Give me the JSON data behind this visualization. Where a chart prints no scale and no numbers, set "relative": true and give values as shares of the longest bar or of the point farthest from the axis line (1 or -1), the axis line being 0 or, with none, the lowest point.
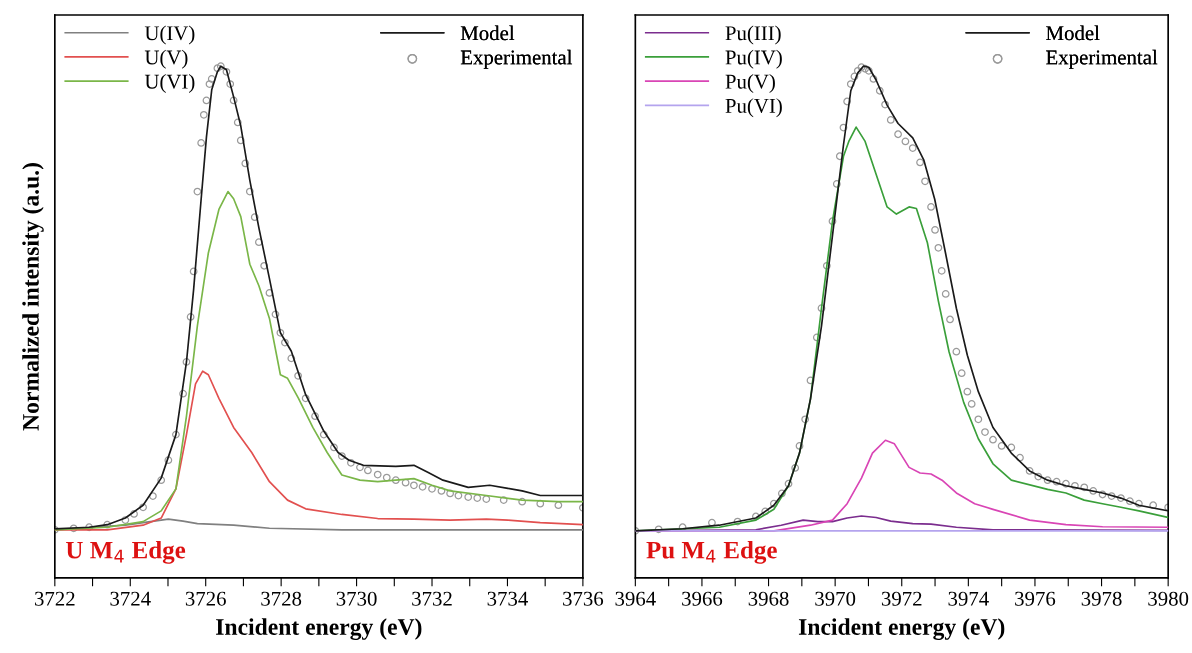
{
  "chart_data": [
    {
      "type": "line",
      "relative": true,
      "xlabel": "Incident energy (eV)",
      "ylabel": "Normalized intensity (a.u.)",
      "annotations": [
        "U M$_{4}$ Edge"
      ],
      "tick_labels": "x",
      "grid": false,
      "legend": "top left",
      "marker": "none",
      "line_style": "solid",
      "xlim": [
        3722,
        3736
      ],
      "xticks": [
        3722,
        {
          "value": 3723,
          "label": null
        },
        3724,
        {
          "value": 3725,
          "label": null
        },
        3726,
        {
          "value": 3727,
          "label": null
        },
        3728,
        {
          "value": 3729,
          "label": null
        },
        3730,
        {
          "value": 3731,
          "label": null
        },
        3732,
        {
          "value": 3733,
          "label": null
        },
        3734,
        {
          "value": 3735,
          "label": null
        },
        3736
      ],
      "series": [
        {
          "name": "U(IV)",
          "color": "#808080",
          "x": [
            3722.0,
            3723.87,
            3724.63,
            3725.01,
            3725.4,
            3725.78,
            3726.74,
            3727.69,
            3729.61,
            3736.0
          ],
          "values": [
            0.094,
            0.103,
            0.111,
            0.115,
            0.111,
            0.106,
            0.103,
            0.097,
            0.094,
            0.094
          ]
        },
        {
          "name": "U(V)",
          "color": "#e2504f",
          "x": [
            3722.0,
            3723.39,
            3724.34,
            3724.82,
            3725.21,
            3725.49,
            3725.73,
            3725.92,
            3726.07,
            3726.35,
            3726.74,
            3727.22,
            3727.69,
            3728.17,
            3728.65,
            3729.61,
            3730.56,
            3731.52,
            3732.48,
            3733.44,
            3734.01,
            3734.87,
            3736.0
          ],
          "values": [
            0.094,
            0.094,
            0.103,
            0.117,
            0.174,
            0.28,
            0.379,
            0.404,
            0.397,
            0.351,
            0.294,
            0.245,
            0.188,
            0.152,
            0.135,
            0.124,
            0.116,
            0.115,
            0.113,
            0.115,
            0.113,
            0.108,
            0.104
          ]
        },
        {
          "name": "U(VI)",
          "color": "#7ab648",
          "x": [
            3722.0,
            3723.39,
            3724.34,
            3724.82,
            3725.21,
            3725.49,
            3725.78,
            3726.07,
            3726.35,
            3726.59,
            3726.74,
            3726.93,
            3727.17,
            3727.41,
            3727.69,
            3727.98,
            3728.17,
            3728.46,
            3728.84,
            3729.22,
            3729.61,
            3730.09,
            3730.56,
            3731.04,
            3731.52,
            3732.0,
            3732.48,
            3733.44,
            3734.39,
            3735.35,
            3736.0
          ],
          "values": [
            0.094,
            0.099,
            0.11,
            0.131,
            0.174,
            0.316,
            0.493,
            0.635,
            0.72,
            0.755,
            0.741,
            0.706,
            0.613,
            0.571,
            0.507,
            0.397,
            0.39,
            0.351,
            0.294,
            0.245,
            0.201,
            0.191,
            0.188,
            0.191,
            0.194,
            0.181,
            0.17,
            0.161,
            0.152,
            0.149,
            0.149
          ]
        },
        {
          "name": "Model",
          "color": "#1a1a1a",
          "x": [
            3722.0,
            3722.91,
            3723.39,
            3723.87,
            3724.34,
            3724.82,
            3725.21,
            3725.49,
            3725.68,
            3725.88,
            3726.02,
            3726.16,
            3726.31,
            3726.4,
            3726.55,
            3726.74,
            3726.93,
            3727.17,
            3727.41,
            3727.69,
            3727.98,
            3728.27,
            3728.65,
            3729.13,
            3729.51,
            3729.8,
            3730.18,
            3731.04,
            3731.52,
            3731.9,
            3732.29,
            3732.96,
            3733.53,
            3734.01,
            3734.39,
            3734.87,
            3735.35,
            3736.0
          ],
          "values": [
            0.096,
            0.099,
            0.104,
            0.117,
            0.142,
            0.195,
            0.28,
            0.422,
            0.564,
            0.741,
            0.862,
            0.954,
            0.989,
            1.0,
            0.993,
            0.94,
            0.883,
            0.777,
            0.684,
            0.585,
            0.479,
            0.443,
            0.358,
            0.287,
            0.245,
            0.23,
            0.22,
            0.218,
            0.22,
            0.206,
            0.191,
            0.177,
            0.181,
            0.175,
            0.17,
            0.161,
            0.161,
            0.161
          ]
        },
        {
          "name": "Experimental",
          "type": "scatter",
          "marker": "circle",
          "color": "#9a9a9a",
          "x": [
            3722.0,
            3722.5,
            3722.91,
            3723.39,
            3723.87,
            3724.1,
            3724.34,
            3724.6,
            3724.82,
            3725.01,
            3725.21,
            3725.4,
            3725.49,
            3725.6,
            3725.68,
            3725.78,
            3725.88,
            3725.95,
            3726.02,
            3726.1,
            3726.16,
            3726.31,
            3726.4,
            3726.55,
            3726.65,
            3726.74,
            3726.85,
            3726.93,
            3727.05,
            3727.17,
            3727.3,
            3727.41,
            3727.55,
            3727.69,
            3727.85,
            3727.98,
            3728.1,
            3728.27,
            3728.45,
            3728.65,
            3728.9,
            3729.13,
            3729.4,
            3729.61,
            3729.85,
            3730.09,
            3730.3,
            3730.56,
            3730.8,
            3731.04,
            3731.3,
            3731.52,
            3731.75,
            3732.0,
            3732.25,
            3732.48,
            3732.7,
            3732.96,
            3733.2,
            3733.44,
            3733.9,
            3734.39,
            3734.87,
            3735.35,
            3736.0
          ],
          "values": [
            0.094,
            0.097,
            0.099,
            0.104,
            0.113,
            0.125,
            0.138,
            0.16,
            0.191,
            0.23,
            0.28,
            0.36,
            0.422,
            0.51,
            0.599,
            0.755,
            0.85,
            0.905,
            0.933,
            0.965,
            0.975,
            0.996,
            1.0,
            0.989,
            0.965,
            0.933,
            0.89,
            0.855,
            0.81,
            0.755,
            0.705,
            0.656,
            0.61,
            0.557,
            0.515,
            0.479,
            0.46,
            0.429,
            0.395,
            0.351,
            0.316,
            0.28,
            0.255,
            0.238,
            0.225,
            0.216,
            0.21,
            0.202,
            0.196,
            0.191,
            0.186,
            0.181,
            0.178,
            0.174,
            0.17,
            0.165,
            0.161,
            0.158,
            0.156,
            0.154,
            0.152,
            0.149,
            0.145,
            0.142,
            0.137
          ]
        }
      ]
    },
    {
      "type": "line",
      "relative": true,
      "xlabel": "Incident energy (eV)",
      "annotations": [
        "Pu M$_{4}$ Edge"
      ],
      "tick_labels": "x",
      "grid": false,
      "legend": "top left",
      "marker": "none",
      "line_style": "solid",
      "xlim": [
        3964,
        3980
      ],
      "xticks": [
        3964,
        {
          "value": 3965,
          "label": null
        },
        3966,
        {
          "value": 3967,
          "label": null
        },
        3968,
        {
          "value": 3969,
          "label": null
        },
        3970,
        {
          "value": 3971,
          "label": null
        },
        3972,
        {
          "value": 3973,
          "label": null
        },
        3974,
        {
          "value": 3975,
          "label": null
        },
        3976,
        {
          "value": 3977,
          "label": null
        },
        3978,
        {
          "value": 3979,
          "label": null
        },
        3980
      ],
      "series": [
        {
          "name": "Pu(III)",
          "color": "#7b2d8e",
          "x": [
            3964.0,
            3967.62,
            3968.38,
            3969.04,
            3969.48,
            3969.92,
            3970.36,
            3970.79,
            3971.23,
            3971.67,
            3972.33,
            3972.88,
            3973.64,
            3974.74,
            3980.0
          ],
          "values": [
            0.092,
            0.094,
            0.103,
            0.113,
            0.11,
            0.11,
            0.117,
            0.121,
            0.118,
            0.111,
            0.106,
            0.105,
            0.099,
            0.094,
            0.093
          ]
        },
        {
          "name": "Pu(IV)",
          "color": "#3a9f3a",
          "x": [
            3964.0,
            3966.52,
            3967.62,
            3968.16,
            3968.6,
            3968.93,
            3969.26,
            3969.59,
            3969.92,
            3970.25,
            3970.41,
            3970.63,
            3970.9,
            3971.23,
            3971.56,
            3971.84,
            3972.22,
            3972.44,
            3972.77,
            3973.1,
            3973.42,
            3973.86,
            3974.3,
            3974.74,
            3975.29,
            3976.38,
            3976.93,
            3977.48,
            3978.03,
            3978.58,
            3979.12,
            3980.0
          ],
          "values": [
            0.092,
            0.099,
            0.113,
            0.134,
            0.18,
            0.244,
            0.35,
            0.527,
            0.697,
            0.824,
            0.853,
            0.881,
            0.853,
            0.789,
            0.725,
            0.711,
            0.725,
            0.722,
            0.655,
            0.541,
            0.442,
            0.343,
            0.272,
            0.223,
            0.191,
            0.173,
            0.166,
            0.152,
            0.145,
            0.138,
            0.131,
            0.118
          ]
        },
        {
          "name": "Pu(V)",
          "color": "#d945b5",
          "x": [
            3964.0,
            3968.16,
            3969.26,
            3969.92,
            3970.36,
            3970.79,
            3971.12,
            3971.51,
            3971.78,
            3972.22,
            3972.55,
            3972.88,
            3973.21,
            3973.64,
            3974.19,
            3974.74,
            3975.84,
            3976.93,
            3978.03,
            3980.0
          ],
          "values": [
            0.092,
            0.092,
            0.103,
            0.113,
            0.145,
            0.195,
            0.244,
            0.269,
            0.262,
            0.216,
            0.205,
            0.203,
            0.191,
            0.166,
            0.145,
            0.134,
            0.113,
            0.104,
            0.1,
            0.099
          ]
        },
        {
          "name": "Pu(VI)",
          "color": "#b4a4ee",
          "x": [
            3964.0,
            3980.0
          ],
          "values": [
            0.092,
            0.092
          ]
        },
        {
          "name": "Model",
          "color": "#1a1a1a",
          "x": [
            3964.0,
            3965.42,
            3966.52,
            3967.62,
            3968.16,
            3968.6,
            3968.93,
            3969.26,
            3969.59,
            3969.92,
            3970.25,
            3970.47,
            3970.68,
            3970.85,
            3971.01,
            3971.23,
            3971.56,
            3971.89,
            3972.33,
            3972.66,
            3972.99,
            3973.32,
            3973.64,
            3973.97,
            3974.3,
            3974.74,
            3975.29,
            3975.84,
            3976.38,
            3976.93,
            3977.48,
            3978.03,
            3978.58,
            3979.12,
            3980.0
          ],
          "values": [
            0.092,
            0.096,
            0.103,
            0.117,
            0.142,
            0.18,
            0.244,
            0.35,
            0.492,
            0.669,
            0.846,
            0.952,
            0.987,
            1.0,
            0.998,
            0.973,
            0.924,
            0.888,
            0.86,
            0.817,
            0.74,
            0.633,
            0.527,
            0.435,
            0.364,
            0.294,
            0.244,
            0.209,
            0.191,
            0.18,
            0.173,
            0.166,
            0.156,
            0.142,
            0.131
          ]
        },
        {
          "name": "Experimental",
          "type": "scatter",
          "marker": "circle",
          "color": "#9a9a9a",
          "x": [
            3964.0,
            3964.7,
            3965.42,
            3966.3,
            3967.07,
            3967.62,
            3967.9,
            3968.16,
            3968.4,
            3968.6,
            3968.8,
            3968.93,
            3969.1,
            3969.26,
            3969.45,
            3969.59,
            3969.75,
            3969.92,
            3970.05,
            3970.14,
            3970.25,
            3970.36,
            3970.47,
            3970.58,
            3970.68,
            3970.79,
            3970.9,
            3971.01,
            3971.15,
            3971.34,
            3971.5,
            3971.67,
            3971.89,
            3972.11,
            3972.33,
            3972.55,
            3972.7,
            3972.88,
            3973.0,
            3973.1,
            3973.2,
            3973.32,
            3973.45,
            3973.64,
            3973.8,
            3973.97,
            3974.1,
            3974.3,
            3974.5,
            3974.74,
            3975.0,
            3975.29,
            3975.55,
            3975.84,
            3976.1,
            3976.38,
            3976.65,
            3976.93,
            3977.2,
            3977.48,
            3977.75,
            3978.03,
            3978.3,
            3978.58,
            3978.85,
            3979.12,
            3979.55,
            3980.0
          ],
          "values": [
            0.092,
            0.095,
            0.099,
            0.108,
            0.11,
            0.12,
            0.13,
            0.145,
            0.165,
            0.184,
            0.215,
            0.258,
            0.31,
            0.386,
            0.47,
            0.527,
            0.61,
            0.697,
            0.77,
            0.824,
            0.88,
            0.931,
            0.965,
            0.98,
            0.991,
            0.998,
            0.995,
            0.991,
            0.975,
            0.952,
            0.925,
            0.895,
            0.867,
            0.853,
            0.84,
            0.812,
            0.775,
            0.725,
            0.68,
            0.645,
            0.6,
            0.555,
            0.505,
            0.442,
            0.4,
            0.364,
            0.34,
            0.31,
            0.285,
            0.27,
            0.258,
            0.255,
            0.235,
            0.209,
            0.198,
            0.191,
            0.188,
            0.184,
            0.18,
            0.177,
            0.17,
            0.163,
            0.16,
            0.156,
            0.15,
            0.145,
            0.142,
            0.138
          ]
        }
      ]
    }
  ]
}
